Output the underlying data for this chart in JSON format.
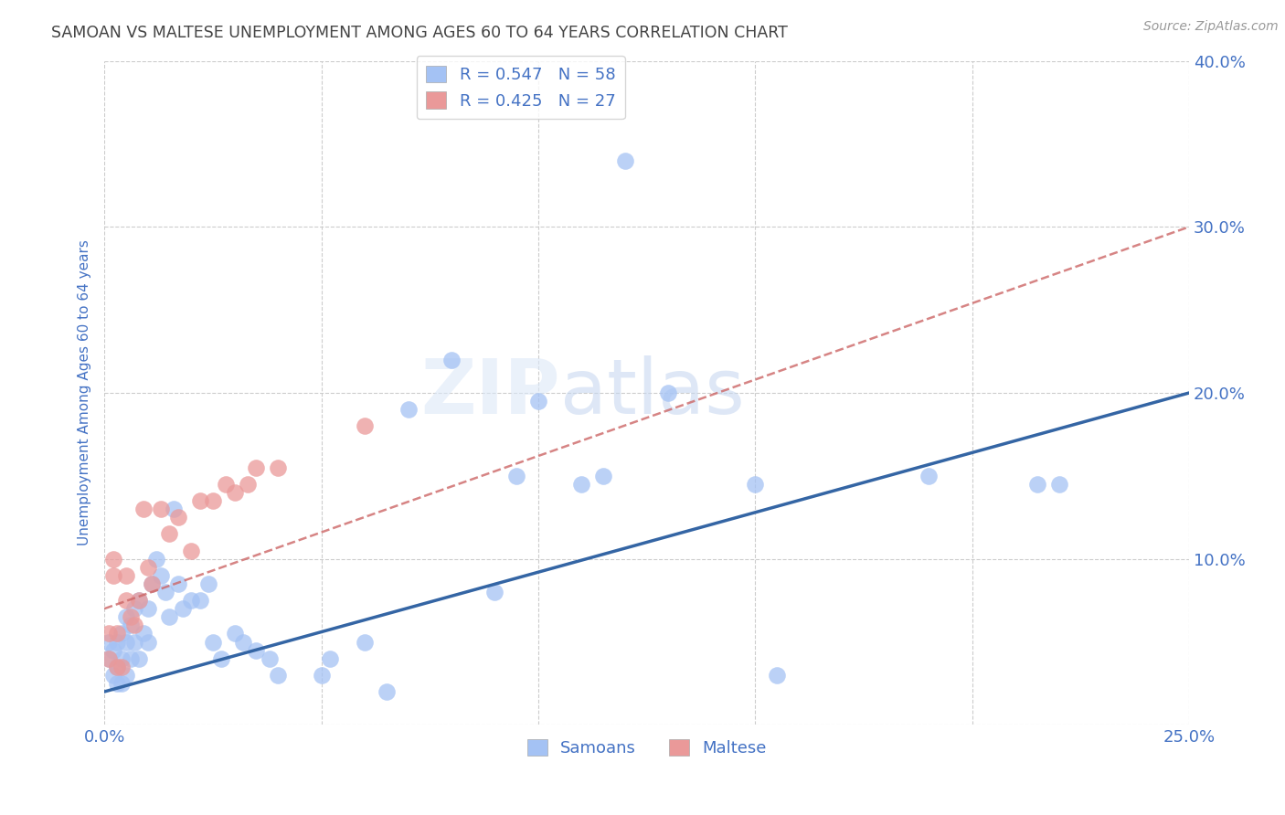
{
  "title": "SAMOAN VS MALTESE UNEMPLOYMENT AMONG AGES 60 TO 64 YEARS CORRELATION CHART",
  "source": "Source: ZipAtlas.com",
  "ylabel": "Unemployment Among Ages 60 to 64 years",
  "xlim": [
    0.0,
    0.25
  ],
  "ylim": [
    0.0,
    0.4
  ],
  "xticks": [
    0.0,
    0.05,
    0.1,
    0.15,
    0.2,
    0.25
  ],
  "yticks": [
    0.0,
    0.1,
    0.2,
    0.3,
    0.4
  ],
  "xtick_labels": [
    "0.0%",
    "",
    "",
    "",
    "",
    "25.0%"
  ],
  "ytick_labels": [
    "",
    "10.0%",
    "20.0%",
    "30.0%",
    "40.0%"
  ],
  "grid_color": "#cccccc",
  "background_color": "#ffffff",
  "watermark_zip": "ZIP",
  "watermark_atlas": "atlas",
  "samoans_color": "#a4c2f4",
  "maltese_color": "#ea9999",
  "samoans_R": "0.547",
  "samoans_N": "58",
  "maltese_R": "0.425",
  "maltese_N": "27",
  "legend_label_samoans": "Samoans",
  "legend_label_maltese": "Maltese",
  "title_color": "#444444",
  "axis_label_color": "#4472c4",
  "tick_color": "#4472c4",
  "regression_blue_color": "#3465a4",
  "regression_pink_color": "#cc6666",
  "samoans_x": [
    0.001,
    0.001,
    0.002,
    0.002,
    0.003,
    0.003,
    0.003,
    0.004,
    0.004,
    0.004,
    0.005,
    0.005,
    0.005,
    0.006,
    0.006,
    0.007,
    0.007,
    0.008,
    0.008,
    0.009,
    0.01,
    0.01,
    0.011,
    0.012,
    0.013,
    0.014,
    0.015,
    0.016,
    0.017,
    0.018,
    0.02,
    0.022,
    0.024,
    0.025,
    0.027,
    0.03,
    0.032,
    0.035,
    0.038,
    0.04,
    0.05,
    0.052,
    0.06,
    0.065,
    0.07,
    0.08,
    0.09,
    0.095,
    0.1,
    0.11,
    0.115,
    0.12,
    0.13,
    0.15,
    0.155,
    0.19,
    0.215,
    0.22
  ],
  "samoans_y": [
    0.04,
    0.05,
    0.03,
    0.045,
    0.025,
    0.035,
    0.05,
    0.025,
    0.04,
    0.055,
    0.03,
    0.05,
    0.065,
    0.04,
    0.06,
    0.05,
    0.07,
    0.04,
    0.075,
    0.055,
    0.05,
    0.07,
    0.085,
    0.1,
    0.09,
    0.08,
    0.065,
    0.13,
    0.085,
    0.07,
    0.075,
    0.075,
    0.085,
    0.05,
    0.04,
    0.055,
    0.05,
    0.045,
    0.04,
    0.03,
    0.03,
    0.04,
    0.05,
    0.02,
    0.19,
    0.22,
    0.08,
    0.15,
    0.195,
    0.145,
    0.15,
    0.34,
    0.2,
    0.145,
    0.03,
    0.15,
    0.145,
    0.145
  ],
  "maltese_x": [
    0.001,
    0.001,
    0.002,
    0.002,
    0.003,
    0.003,
    0.004,
    0.005,
    0.005,
    0.006,
    0.007,
    0.008,
    0.009,
    0.01,
    0.011,
    0.013,
    0.015,
    0.017,
    0.02,
    0.022,
    0.025,
    0.028,
    0.03,
    0.033,
    0.035,
    0.04,
    0.06
  ],
  "maltese_y": [
    0.04,
    0.055,
    0.09,
    0.1,
    0.035,
    0.055,
    0.035,
    0.075,
    0.09,
    0.065,
    0.06,
    0.075,
    0.13,
    0.095,
    0.085,
    0.13,
    0.115,
    0.125,
    0.105,
    0.135,
    0.135,
    0.145,
    0.14,
    0.145,
    0.155,
    0.155,
    0.18
  ]
}
